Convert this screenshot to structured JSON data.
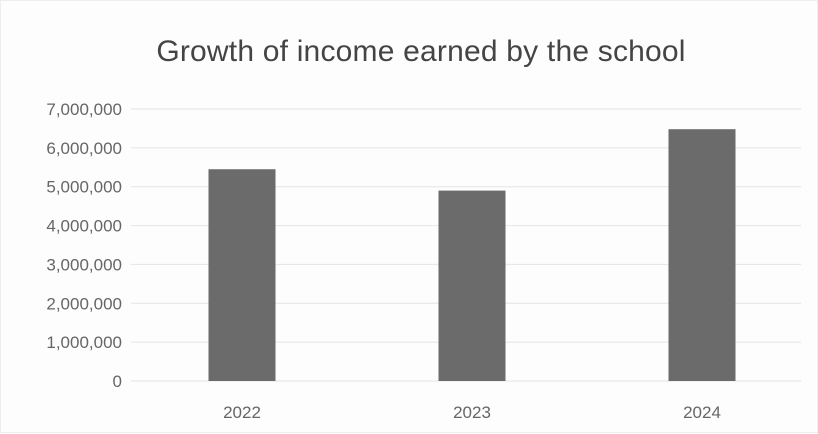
{
  "chart_data": {
    "type": "bar",
    "title": "Growth of income earned by the school",
    "categories": [
      "2022",
      "2023",
      "2024"
    ],
    "values": [
      5450000,
      4900000,
      6480000
    ],
    "ylim": [
      0,
      7000000
    ],
    "yticks": [
      0,
      1000000,
      2000000,
      3000000,
      4000000,
      5000000,
      6000000,
      7000000
    ],
    "ytick_labels": [
      "0",
      "1,000,000",
      "2,000,000",
      "3,000,000",
      "4,000,000",
      "5,000,000",
      "6,000,000",
      "7,000,000"
    ],
    "grid": true,
    "legend": "none",
    "bar_color": "#6b6b6b",
    "grid_color": "#e4e4e4"
  }
}
